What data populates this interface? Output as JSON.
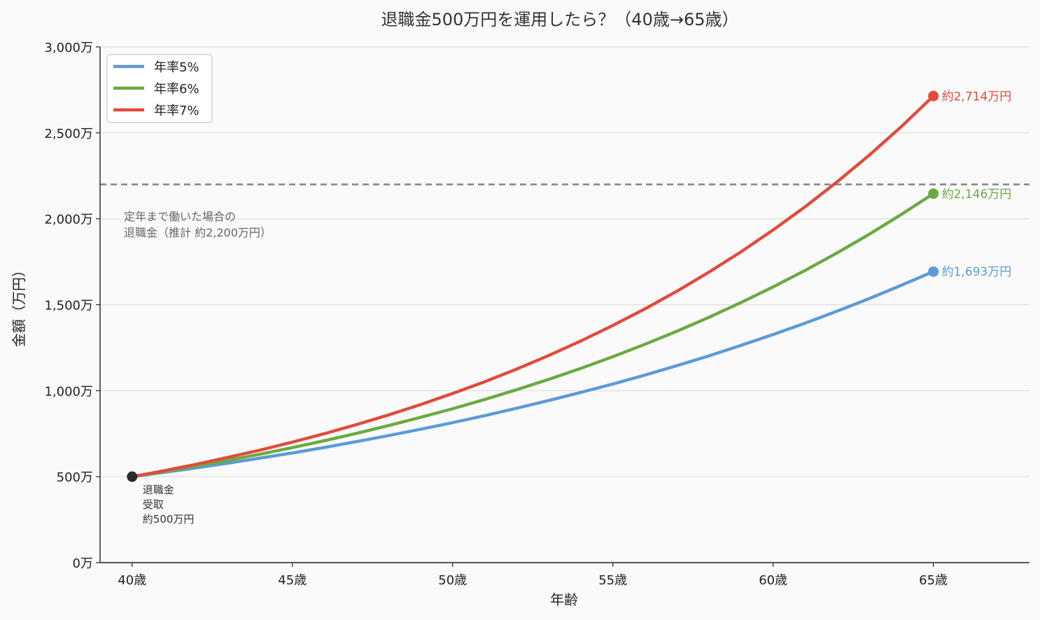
{
  "chart_data": {
    "type": "line",
    "title": "退職金500万円を運用したら？（40歳→65歳）",
    "xlabel": "年齢",
    "ylabel": "金額（万円）",
    "x_range": [
      39,
      68
    ],
    "ylim": [
      0,
      3000
    ],
    "x_ticks": [
      40,
      45,
      50,
      55,
      60,
      65
    ],
    "x_tick_labels": [
      "40歳",
      "45歳",
      "50歳",
      "55歳",
      "60歳",
      "65歳"
    ],
    "y_ticks": [
      0,
      500,
      1000,
      1500,
      2000,
      2500,
      3000
    ],
    "y_tick_labels": [
      "0万",
      "500万",
      "1,000万",
      "1,500万",
      "2,000万",
      "2,500万",
      "3,000万"
    ],
    "grid": "horizontal",
    "legend_position": "top-left",
    "start": {
      "x": 40,
      "y": 500,
      "color": "#2b2b2b",
      "label_lines": [
        "退職金",
        "受取",
        "約500万円"
      ]
    },
    "series": [
      {
        "name": "年率5%",
        "color": "#5b9bd5",
        "x": [
          40,
          41,
          42,
          43,
          44,
          45,
          46,
          47,
          48,
          49,
          50,
          51,
          52,
          53,
          54,
          55,
          56,
          57,
          58,
          59,
          60,
          61,
          62,
          63,
          64,
          65
        ],
        "values": [
          500,
          525,
          551,
          579,
          608,
          638,
          670,
          704,
          739,
          776,
          814,
          855,
          898,
          943,
          990,
          1039,
          1091,
          1146,
          1203,
          1264,
          1327,
          1393,
          1463,
          1536,
          1613,
          1693
        ],
        "end_label": "約1,693万円"
      },
      {
        "name": "年率6%",
        "color": "#6aaa41",
        "x": [
          40,
          41,
          42,
          43,
          44,
          45,
          46,
          47,
          48,
          49,
          50,
          51,
          52,
          53,
          54,
          55,
          56,
          57,
          58,
          59,
          60,
          61,
          62,
          63,
          64,
          65
        ],
        "values": [
          500,
          530,
          562,
          596,
          631,
          669,
          709,
          752,
          797,
          845,
          895,
          949,
          1006,
          1066,
          1130,
          1198,
          1270,
          1346,
          1427,
          1513,
          1604,
          1700,
          1802,
          1910,
          2025,
          2146
        ],
        "end_label": "約2,146万円"
      },
      {
        "name": "年率7%",
        "color": "#e24a3b",
        "x": [
          40,
          41,
          42,
          43,
          44,
          45,
          46,
          47,
          48,
          49,
          50,
          51,
          52,
          53,
          54,
          55,
          56,
          57,
          58,
          59,
          60,
          61,
          62,
          63,
          64,
          65
        ],
        "values": [
          500,
          535,
          572,
          613,
          655,
          701,
          750,
          803,
          859,
          919,
          984,
          1052,
          1126,
          1205,
          1289,
          1380,
          1476,
          1579,
          1690,
          1808,
          1935,
          2070,
          2215,
          2370,
          2536,
          2714
        ],
        "end_label": "約2,714万円"
      }
    ],
    "reference_line": {
      "y": 2200,
      "style": "dashed",
      "color": "#888888",
      "label_lines": [
        "定年まで働いた場合の",
        "退職金（推計 約2,200万円）"
      ]
    }
  }
}
